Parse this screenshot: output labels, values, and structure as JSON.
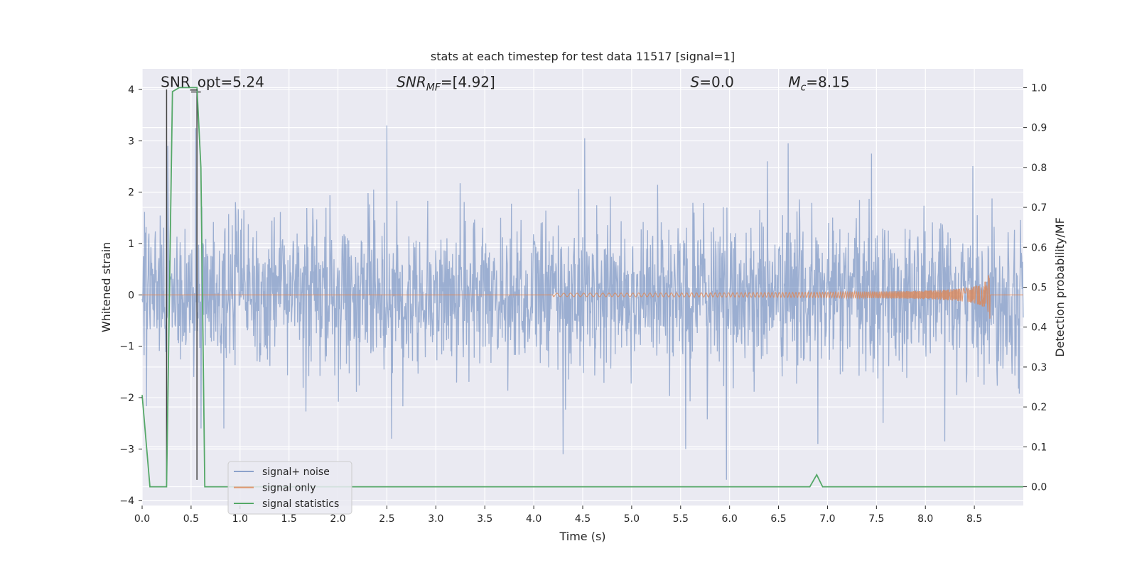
{
  "chart_data": {
    "type": "line",
    "title": "stats at each timestep for test data 11517 [signal=1]",
    "xlabel": "Time (s)",
    "ylabel_left": "Whitened strain",
    "ylabel_right": "Detection probability/MF",
    "xlim": [
      0.0,
      9.0
    ],
    "ylim_left": [
      -4.1,
      4.4
    ],
    "ylim_right": [
      -0.047,
      1.047
    ],
    "x_ticks": [
      "0.0",
      "0.5",
      "1.0",
      "1.5",
      "2.0",
      "2.5",
      "3.0",
      "3.5",
      "4.0",
      "4.5",
      "5.0",
      "5.5",
      "6.0",
      "6.5",
      "7.0",
      "7.5",
      "8.0",
      "8.5"
    ],
    "y_ticks_left": [
      "−4",
      "−3",
      "−2",
      "−1",
      "0",
      "1",
      "2",
      "3",
      "4"
    ],
    "y_ticks_right": [
      "0.0",
      "0.1",
      "0.2",
      "0.3",
      "0.4",
      "0.5",
      "0.6",
      "0.7",
      "0.8",
      "0.9",
      "1.0"
    ],
    "grid": true,
    "legend_position": "bottom-left",
    "annotations": [
      {
        "text": "SNR_opt=5.24",
        "x": 0.19,
        "y": 4.05
      },
      {
        "text_main": "SNR",
        "text_sub": "MF",
        "text_rest": "=[4.92]",
        "x": 2.6,
        "y": 4.05
      },
      {
        "text_main": "S",
        "text_rest": "=0.0",
        "x": 5.6,
        "y": 4.05
      },
      {
        "text_main": "M",
        "text_sub": "c",
        "text_rest": "=8.15",
        "x": 6.6,
        "y": 4.05
      }
    ],
    "markers": [
      {
        "x": 0.25,
        "y_from": -3.6,
        "y_to": 4.0
      },
      {
        "x": 0.56,
        "y_from": -3.6,
        "y_to": 3.95
      }
    ],
    "series": [
      {
        "name": "signal+ noise",
        "color": "#4c72b0",
        "axis": "left",
        "description_values": "dense whitened noise, core amplitude about ±1.8, peaks to about ±3.3",
        "peaks": [
          [
            0.26,
            2.9
          ],
          [
            0.55,
            3.25
          ],
          [
            0.6,
            -2.6
          ],
          [
            2.5,
            3.3
          ],
          [
            2.55,
            -2.8
          ],
          [
            4.3,
            -3.1
          ],
          [
            4.52,
            3.05
          ],
          [
            5.55,
            -3.0
          ],
          [
            5.97,
            -3.6
          ],
          [
            6.6,
            2.95
          ],
          [
            6.9,
            -2.9
          ],
          [
            7.45,
            2.75
          ],
          [
            8.2,
            -2.85
          ]
        ]
      },
      {
        "name": "signal only",
        "color": "#dd8452",
        "axis": "left",
        "chirp_start": 4.2,
        "chirp_end": 8.66,
        "peak_amplitude": 0.5
      },
      {
        "name": "signal statistics",
        "color": "#55a868",
        "axis": "right",
        "points": [
          [
            0.0,
            0.23
          ],
          [
            0.08,
            0.0
          ],
          [
            0.25,
            0.0
          ],
          [
            0.31,
            0.99
          ],
          [
            0.38,
            1.0
          ],
          [
            0.56,
            1.0
          ],
          [
            0.6,
            0.8
          ],
          [
            0.64,
            0.0
          ],
          [
            0.8,
            0.0
          ],
          [
            6.5,
            0.0
          ],
          [
            6.82,
            0.0
          ],
          [
            6.89,
            0.03
          ],
          [
            6.95,
            0.0
          ],
          [
            7.01,
            0.0
          ],
          [
            7.8,
            0.0
          ],
          [
            7.9,
            0.0
          ],
          [
            9.0,
            0.0
          ]
        ]
      }
    ]
  }
}
